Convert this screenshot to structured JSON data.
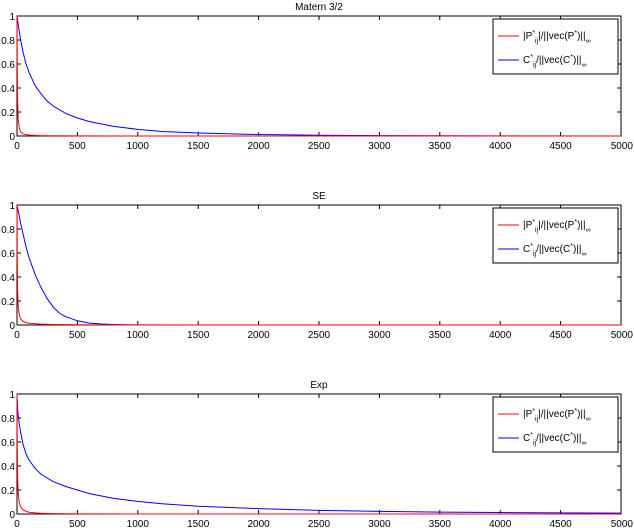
{
  "chart_data": [
    {
      "type": "line",
      "title": "Matern 3/2",
      "xlim": [
        0,
        5000
      ],
      "ylim": [
        0,
        1
      ],
      "xticks": [
        "0",
        "500",
        "1000",
        "1500",
        "2000",
        "2500",
        "3000",
        "3500",
        "4000",
        "4500",
        "5000"
      ],
      "yticks": [
        "0",
        "0.2",
        "0.4",
        "0.6",
        "0.8",
        "1"
      ],
      "grid": false,
      "legend_position": "top-right",
      "series": [
        {
          "name": "|P*ij|/||vec(P*)||∞",
          "color": "#ff0000",
          "x": [
            0,
            2,
            5,
            10,
            20,
            30,
            50,
            75,
            100,
            150,
            200,
            300,
            500,
            1000,
            5000
          ],
          "y": [
            1.0,
            0.62,
            0.3,
            0.14,
            0.06,
            0.035,
            0.018,
            0.011,
            0.008,
            0.005,
            0.003,
            0.002,
            0.001,
            0.0,
            0.0
          ]
        },
        {
          "name": "C*ij/||vec(C*)||∞",
          "color": "#0000ff",
          "x": [
            0,
            5,
            10,
            20,
            30,
            50,
            75,
            100,
            150,
            200,
            250,
            300,
            400,
            500,
            600,
            700,
            800,
            1000,
            1200,
            1500,
            2000,
            2500,
            3000,
            4000,
            5000
          ],
          "y": [
            1.0,
            0.97,
            0.93,
            0.86,
            0.8,
            0.7,
            0.6,
            0.53,
            0.42,
            0.35,
            0.29,
            0.25,
            0.19,
            0.15,
            0.12,
            0.1,
            0.08,
            0.055,
            0.038,
            0.025,
            0.012,
            0.006,
            0.003,
            0.001,
            0.0
          ]
        }
      ]
    },
    {
      "type": "line",
      "title": "SE",
      "xlim": [
        0,
        5000
      ],
      "ylim": [
        0,
        1
      ],
      "xticks": [
        "0",
        "500",
        "1000",
        "1500",
        "2000",
        "2500",
        "3000",
        "3500",
        "4000",
        "4500",
        "5000"
      ],
      "yticks": [
        "0",
        "0.2",
        "0.4",
        "0.6",
        "0.8",
        "1"
      ],
      "grid": false,
      "legend_position": "top-right",
      "series": [
        {
          "name": "|P*ij|/||vec(P*)||∞",
          "color": "#ff0000",
          "x": [
            0,
            2,
            5,
            10,
            20,
            30,
            50,
            75,
            100,
            150,
            200,
            300,
            500,
            1000,
            5000
          ],
          "y": [
            1.0,
            0.6,
            0.3,
            0.15,
            0.08,
            0.05,
            0.03,
            0.02,
            0.015,
            0.01,
            0.007,
            0.004,
            0.002,
            0.0,
            0.0
          ]
        },
        {
          "name": "C*ij/||vec(C*)||∞",
          "color": "#0000ff",
          "x": [
            0,
            10,
            20,
            30,
            50,
            75,
            100,
            150,
            200,
            250,
            300,
            350,
            400,
            500,
            600,
            700,
            800,
            1000,
            1500,
            5000
          ],
          "y": [
            1.0,
            0.95,
            0.9,
            0.85,
            0.76,
            0.65,
            0.56,
            0.42,
            0.31,
            0.22,
            0.15,
            0.1,
            0.07,
            0.035,
            0.016,
            0.008,
            0.004,
            0.001,
            0.0,
            0.0
          ]
        }
      ]
    },
    {
      "type": "line",
      "title": "Exp",
      "xlim": [
        0,
        5000
      ],
      "ylim": [
        0,
        1
      ],
      "xticks": [
        "0",
        "500",
        "1000",
        "1500",
        "2000",
        "2500",
        "3000",
        "3500",
        "4000",
        "4500",
        "5000"
      ],
      "yticks": [
        "0",
        "0.2",
        "0.4",
        "0.6",
        "0.8",
        "1"
      ],
      "grid": false,
      "legend_position": "top-right",
      "series": [
        {
          "name": "|P*ij|/||vec(P*)||∞",
          "color": "#ff0000",
          "x": [
            0,
            2,
            5,
            10,
            20,
            30,
            50,
            75,
            100,
            150,
            200,
            300,
            500,
            1000,
            5000
          ],
          "y": [
            1.0,
            0.6,
            0.32,
            0.17,
            0.09,
            0.06,
            0.035,
            0.022,
            0.015,
            0.009,
            0.006,
            0.003,
            0.001,
            0.0,
            0.0
          ]
        },
        {
          "name": "C*ij/||vec(C*)||∞",
          "color": "#0000ff",
          "x": [
            0,
            5,
            10,
            20,
            30,
            50,
            75,
            100,
            150,
            200,
            300,
            400,
            500,
            600,
            800,
            1000,
            1200,
            1500,
            2000,
            2500,
            3000,
            3500,
            4000,
            4500,
            5000
          ],
          "y": [
            1.0,
            0.88,
            0.82,
            0.74,
            0.68,
            0.58,
            0.5,
            0.45,
            0.38,
            0.33,
            0.27,
            0.23,
            0.2,
            0.17,
            0.13,
            0.105,
            0.085,
            0.065,
            0.045,
            0.03,
            0.022,
            0.016,
            0.012,
            0.009,
            0.007
          ]
        }
      ]
    }
  ]
}
